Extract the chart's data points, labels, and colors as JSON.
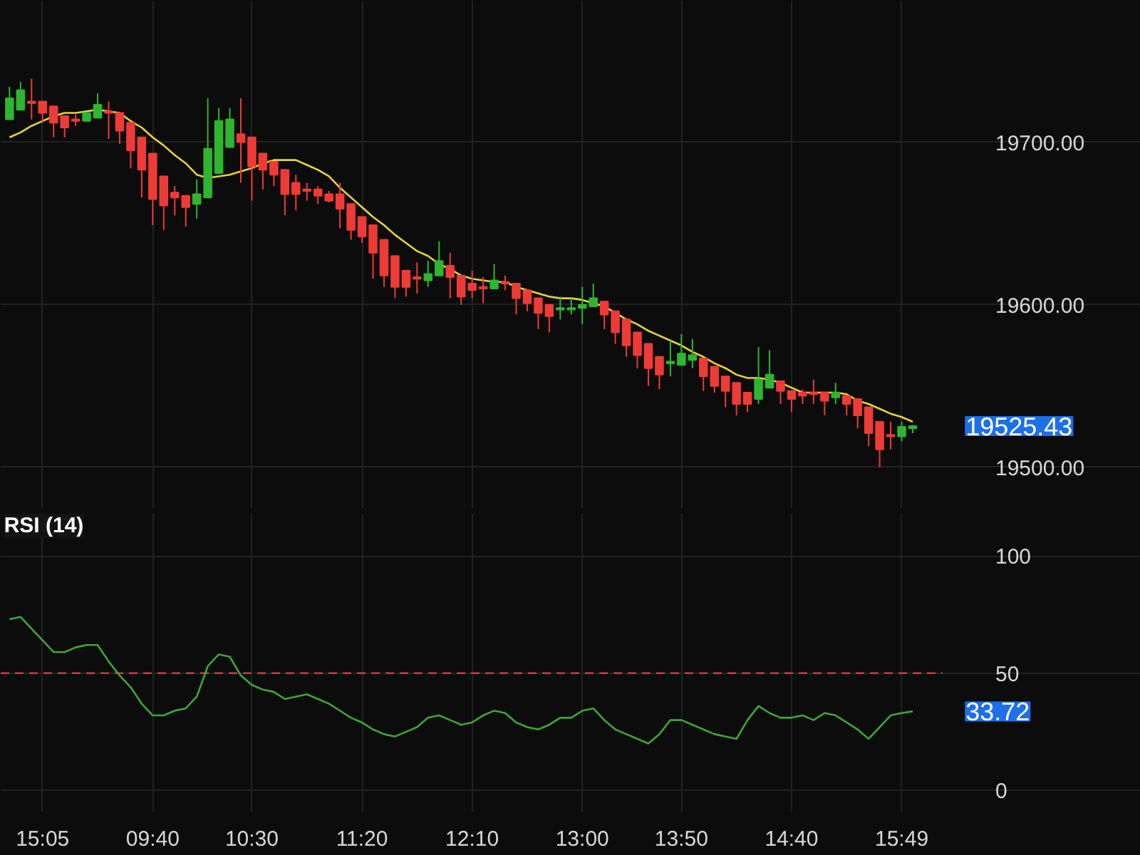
{
  "chart_data": [
    {
      "type": "candlestick",
      "categories": [
        null,
        null,
        null,
        null,
        null,
        null,
        null,
        null,
        null,
        null,
        null,
        null,
        null,
        null,
        null,
        null,
        null,
        null,
        null,
        null,
        null,
        null,
        null,
        null,
        null,
        null,
        null,
        null,
        null,
        null,
        null,
        null,
        null,
        null,
        null,
        null,
        null,
        null,
        null,
        null,
        null,
        null,
        null,
        null,
        null,
        null,
        null,
        null,
        null,
        null,
        null,
        null,
        null,
        null,
        null,
        null,
        null,
        null,
        null,
        null,
        null,
        null,
        null,
        null,
        null,
        null,
        null,
        null,
        null,
        null,
        null,
        null,
        null,
        null,
        null,
        null,
        null,
        null,
        null,
        null,
        null,
        null,
        null
      ],
      "ohlc": [
        [
          19714,
          19734,
          19714,
          19727
        ],
        [
          19720,
          19737,
          19720,
          19732
        ],
        [
          19725,
          19739,
          19714,
          19724
        ],
        [
          19725,
          19725,
          19712,
          19718
        ],
        [
          19722,
          19722,
          19703,
          19712
        ],
        [
          19716,
          19716,
          19703,
          19709
        ],
        [
          19714,
          19717,
          19710,
          19713
        ],
        [
          19713,
          19718,
          19713,
          19718
        ],
        [
          19715,
          19730,
          19715,
          19723
        ],
        [
          19719,
          19725,
          19702,
          19718
        ],
        [
          19718,
          19718,
          19699,
          19707
        ],
        [
          19712,
          19712,
          19684,
          19695
        ],
        [
          19703,
          19703,
          19666,
          19683
        ],
        [
          19693,
          19693,
          19649,
          19665
        ],
        [
          19679,
          19679,
          19646,
          19661
        ],
        [
          19669,
          19673,
          19655,
          19666
        ],
        [
          19667,
          19667,
          19648,
          19660
        ],
        [
          19662,
          19677,
          19653,
          19668
        ],
        [
          19666,
          19727,
          19666,
          19696
        ],
        [
          19681,
          19721,
          19681,
          19713
        ],
        [
          19697,
          19721,
          19697,
          19714
        ],
        [
          19705,
          19727,
          19675,
          19700
        ],
        [
          19703,
          19703,
          19664,
          19685
        ],
        [
          19693,
          19693,
          19671,
          19683
        ],
        [
          19688,
          19688,
          19673,
          19680
        ],
        [
          19683,
          19683,
          19655,
          19668
        ],
        [
          19675,
          19680,
          19658,
          19668
        ],
        [
          19671,
          19675,
          19664,
          19670
        ],
        [
          19671,
          19673,
          19662,
          19667
        ],
        [
          19668,
          19670,
          19663,
          19664
        ],
        [
          19668,
          19675,
          19647,
          19659
        ],
        [
          19662,
          19662,
          19640,
          19646
        ],
        [
          19654,
          19654,
          19638,
          19642
        ],
        [
          19649,
          19649,
          19616,
          19632
        ],
        [
          19640,
          19640,
          19611,
          19618
        ],
        [
          19630,
          19630,
          19604,
          19611
        ],
        [
          19621,
          19621,
          19605,
          19611
        ],
        [
          19617,
          19626,
          19607,
          19616
        ],
        [
          19615,
          19627,
          19611,
          19619
        ],
        [
          19618,
          19639,
          19618,
          19627
        ],
        [
          19624,
          19632,
          19604,
          19617
        ],
        [
          19618,
          19618,
          19600,
          19605
        ],
        [
          19613,
          19621,
          19604,
          19609
        ],
        [
          19611,
          19617,
          19601,
          19610
        ],
        [
          19610,
          19625,
          19610,
          19615
        ],
        [
          19614,
          19618,
          19609,
          19613
        ],
        [
          19613,
          19613,
          19594,
          19604
        ],
        [
          19609,
          19609,
          19596,
          19601
        ],
        [
          19604,
          19604,
          19585,
          19595
        ],
        [
          19600,
          19600,
          19583,
          19593
        ],
        [
          19597,
          19605,
          19591,
          19598
        ],
        [
          19597,
          19604,
          19594,
          19598
        ],
        [
          19598,
          19611,
          19588,
          19600
        ],
        [
          19599,
          19613,
          19599,
          19604
        ],
        [
          19602,
          19602,
          19585,
          19594
        ],
        [
          19596,
          19596,
          19576,
          19583
        ],
        [
          19591,
          19591,
          19568,
          19575
        ],
        [
          19583,
          19583,
          19561,
          19569
        ],
        [
          19576,
          19576,
          19550,
          19561
        ],
        [
          19568,
          19568,
          19548,
          19557
        ],
        [
          19564,
          19578,
          19556,
          19565
        ],
        [
          19563,
          19582,
          19563,
          19570
        ],
        [
          19566,
          19579,
          19561,
          19569
        ],
        [
          19567,
          19567,
          19547,
          19556
        ],
        [
          19562,
          19562,
          19546,
          19550
        ],
        [
          19556,
          19556,
          19537,
          19547
        ],
        [
          19552,
          19552,
          19532,
          19539
        ],
        [
          19546,
          19546,
          19534,
          19539
        ],
        [
          19542,
          19574,
          19539,
          19554
        ],
        [
          19549,
          19572,
          19549,
          19557
        ],
        [
          19553,
          19553,
          19539,
          19547
        ],
        [
          19547,
          19547,
          19534,
          19542
        ],
        [
          19546,
          19548,
          19539,
          19544
        ],
        [
          19546,
          19554,
          19539,
          19545
        ],
        [
          19546,
          19546,
          19532,
          19541
        ],
        [
          19543,
          19552,
          19539,
          19546
        ],
        [
          19544,
          19544,
          19532,
          19539
        ],
        [
          19542,
          19542,
          19524,
          19532
        ],
        [
          19537,
          19537,
          19513,
          19521
        ],
        [
          19528,
          19528,
          19500,
          19511
        ],
        [
          19520,
          19528,
          19511,
          19519
        ],
        [
          19519,
          19528,
          19516,
          19525
        ],
        [
          19524,
          19526,
          19521,
          19525.43
        ]
      ],
      "series": [
        {
          "type": "line",
          "color": "#e6d43a",
          "values": [
            19703,
            19706,
            19710,
            19713,
            19716,
            19718,
            19718,
            19719,
            19720,
            19719,
            19718,
            19713,
            19709,
            19703,
            19698,
            19692,
            19687,
            19680,
            19678,
            19679,
            19680,
            19682,
            19684,
            19687,
            19689,
            19689,
            19689,
            19686,
            19683,
            19679,
            19672,
            19666,
            19660,
            19654,
            19649,
            19643,
            19638,
            19633,
            19630,
            19625,
            19622,
            19618,
            19616,
            19615,
            19614,
            19614,
            19611,
            19609,
            19607,
            19605,
            19604,
            19604,
            19603,
            19601,
            19599,
            19595,
            19591,
            19588,
            19584,
            19581,
            19578,
            19575,
            19571,
            19568,
            19564,
            19561,
            19557,
            19555,
            19555,
            19554,
            19552,
            19549,
            19546,
            19546,
            19546,
            19546,
            19545,
            19541,
            19539,
            19536,
            19533,
            19531,
            19528
          ]
        }
      ],
      "ylim": [
        19475,
        19787
      ],
      "yticks": [
        {
          "value": 19500,
          "label": "19500.00"
        },
        {
          "value": 19600,
          "label": "19600.00"
        },
        {
          "value": 19700,
          "label": "19700.00"
        }
      ],
      "grid": true,
      "tick_labels": "y",
      "annotations": [
        "19525.43"
      ]
    },
    {
      "type": "line",
      "title": "RSI (14)",
      "categories": [
        null,
        null,
        null,
        "15:05",
        null,
        null,
        null,
        null,
        null,
        null,
        null,
        null,
        null,
        "09:40",
        null,
        null,
        null,
        null,
        null,
        null,
        null,
        null,
        "10:30",
        null,
        null,
        null,
        null,
        null,
        null,
        null,
        null,
        null,
        "11:20",
        null,
        null,
        null,
        null,
        null,
        null,
        null,
        null,
        null,
        "12:10",
        null,
        null,
        null,
        null,
        null,
        null,
        null,
        null,
        null,
        "13:00",
        null,
        null,
        null,
        null,
        null,
        null,
        null,
        null,
        "13:50",
        null,
        null,
        null,
        null,
        null,
        null,
        null,
        null,
        null,
        "14:40",
        null,
        null,
        null,
        null,
        null,
        null,
        null,
        null,
        null,
        "15:49",
        null
      ],
      "values": [
        73,
        74,
        69,
        64,
        59,
        59,
        61,
        62,
        62,
        55,
        49,
        44,
        37,
        32,
        32,
        34,
        35,
        40,
        53,
        58,
        57,
        49,
        45,
        43,
        42,
        39,
        40,
        41,
        39,
        37,
        34,
        31,
        29,
        26,
        24,
        23,
        25,
        27,
        31,
        32,
        30,
        28,
        29,
        32,
        34,
        33,
        29,
        27,
        26,
        28,
        31,
        31,
        34,
        35,
        30,
        26,
        24,
        22,
        20,
        24,
        30,
        30,
        28,
        26,
        24,
        23,
        22,
        30,
        36,
        33,
        31,
        31,
        32,
        30,
        33,
        32,
        29,
        26,
        22,
        27,
        32,
        33,
        33.72
      ],
      "color": "#3fa535",
      "ylim": [
        -9,
        118
      ],
      "yticks": [
        0,
        50,
        100
      ],
      "grid": true,
      "ref_lines": [
        {
          "axis": "y",
          "value": 50,
          "color": "#d8344a",
          "line_style": "dashed"
        }
      ],
      "annotations": [
        "33.72"
      ]
    }
  ]
}
